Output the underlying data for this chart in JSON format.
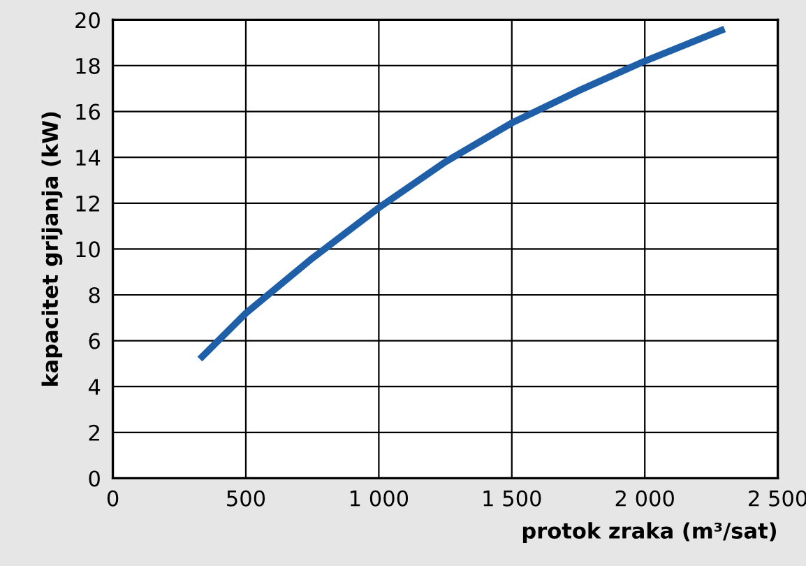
{
  "chart_data": {
    "type": "line",
    "xlabel": "protok zraka (m³/sat)",
    "ylabel": "kapacitet grijanja (kW)",
    "x": [
      327,
      500,
      750,
      1000,
      1250,
      1500,
      1750,
      2000,
      2150,
      2300
    ],
    "series": [
      {
        "color": "#1f5fa8",
        "values": [
          5.2,
          7.2,
          9.6,
          11.8,
          13.8,
          15.5,
          16.9,
          18.2,
          18.9,
          19.6
        ]
      }
    ],
    "xlim": [
      0,
      2500
    ],
    "xticks": [
      0,
      500,
      {
        "value": 1000,
        "label": "1 000"
      },
      {
        "value": 1500,
        "label": "1 500"
      },
      {
        "value": 2000,
        "label": "2 000"
      },
      {
        "value": 2500,
        "label": "2 500"
      }
    ],
    "ylim": [
      0,
      20
    ],
    "yticks": [
      0,
      2,
      4,
      6,
      8,
      10,
      12,
      14,
      16,
      18,
      20
    ],
    "grid": true,
    "legend": false,
    "marker": "none",
    "line_style": "solid"
  }
}
